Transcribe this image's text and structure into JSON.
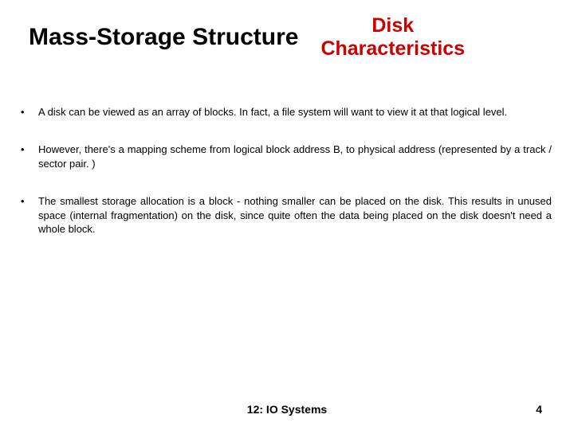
{
  "header": {
    "title": "Mass-Storage Structure",
    "subtitle_line1": "Disk",
    "subtitle_line2": "Characteristics"
  },
  "colors": {
    "title_color": "#000000",
    "subtitle_color": "#cc0000",
    "body_color": "#000000",
    "background": "#ffffff"
  },
  "typography": {
    "title_fontsize": 30,
    "subtitle_fontsize": 25,
    "body_fontsize": 13,
    "footer_fontsize": 14,
    "font_family": "Arial"
  },
  "bullets": [
    "A disk can be viewed as an array of blocks.  In fact, a file system will want to view it at that logical level.",
    "However, there's a mapping scheme from logical block address B, to physical address (represented by a track / sector pair. )",
    "The smallest storage allocation is a block - nothing smaller can be placed on the disk. This results in unused space (internal fragmentation) on the disk, since quite often the data being placed on the disk doesn't need a whole block."
  ],
  "footer": {
    "center": "12: IO Systems",
    "page_number": "4"
  }
}
